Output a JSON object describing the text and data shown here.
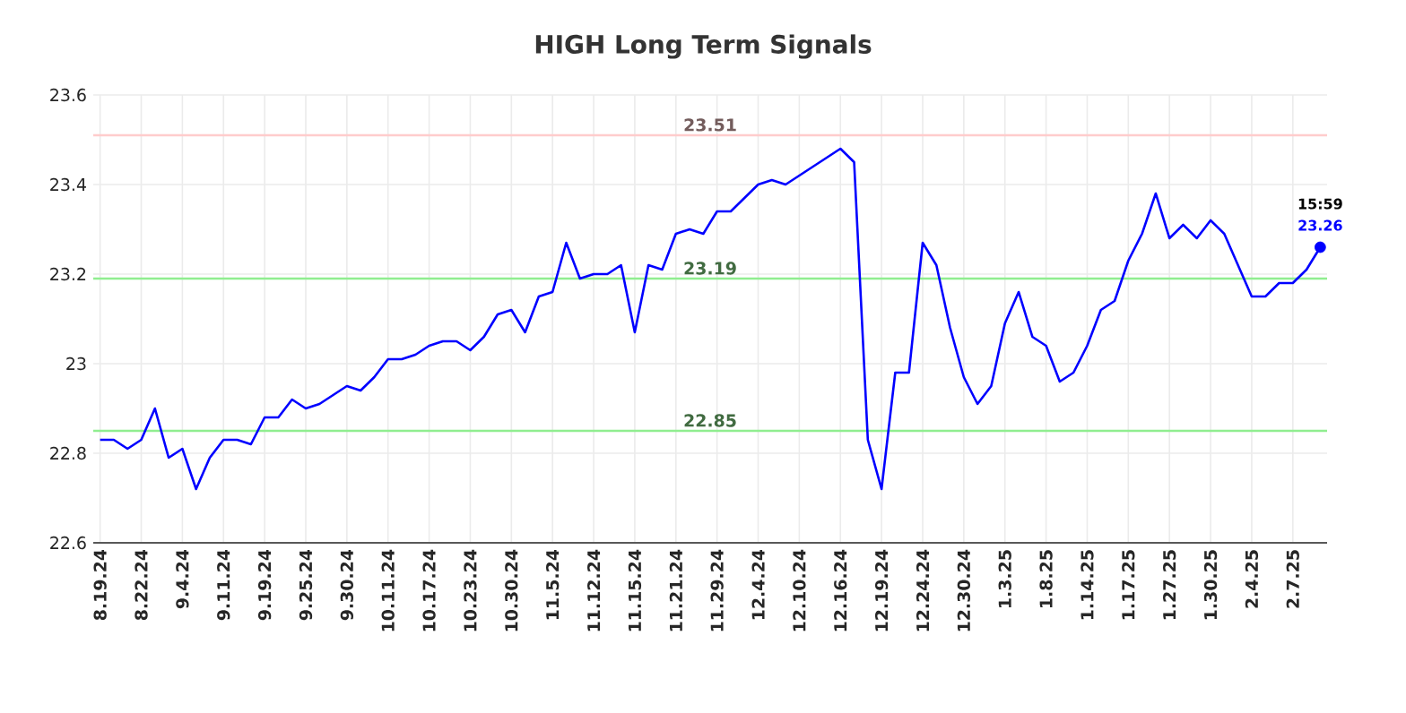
{
  "chart_data": {
    "type": "line",
    "title": "HIGH Long Term Signals",
    "categories": [
      "8.19.24",
      null,
      null,
      "8.22.24",
      null,
      null,
      "9.4.24",
      null,
      null,
      "9.11.24",
      null,
      null,
      "9.19.24",
      null,
      null,
      "9.25.24",
      null,
      null,
      "9.30.24",
      null,
      null,
      "10.11.24",
      null,
      null,
      "10.17.24",
      null,
      null,
      "10.23.24",
      null,
      null,
      "10.30.24",
      null,
      null,
      "11.5.24",
      null,
      null,
      "11.12.24",
      null,
      null,
      "11.15.24",
      null,
      null,
      "11.21.24",
      null,
      null,
      "11.29.24",
      null,
      null,
      "12.4.24",
      null,
      null,
      "12.10.24",
      null,
      null,
      "12.16.24",
      null,
      null,
      "12.19.24",
      null,
      null,
      "12.24.24",
      null,
      null,
      "12.30.24",
      null,
      null,
      "1.3.25",
      null,
      null,
      "1.8.25",
      null,
      null,
      "1.14.25",
      null,
      null,
      "1.17.25",
      null,
      null,
      "1.27.25",
      null,
      null,
      "1.30.25",
      null,
      null,
      "2.4.25",
      null,
      null,
      "2.7.25",
      null,
      null
    ],
    "series": [
      {
        "color": "#0000ff",
        "marker": "none",
        "values": [
          22.83,
          22.83,
          22.81,
          22.83,
          22.9,
          22.79,
          22.81,
          22.72,
          22.79,
          22.83,
          22.83,
          22.82,
          22.88,
          22.88,
          22.92,
          22.9,
          22.91,
          22.93,
          22.95,
          22.94,
          22.97,
          23.01,
          23.01,
          23.02,
          23.04,
          23.05,
          23.05,
          23.03,
          23.06,
          23.11,
          23.12,
          23.07,
          23.15,
          23.16,
          23.27,
          23.19,
          23.2,
          23.2,
          23.22,
          23.07,
          23.22,
          23.21,
          23.29,
          23.3,
          23.29,
          23.34,
          23.34,
          23.37,
          23.4,
          23.41,
          23.4,
          23.42,
          23.44,
          23.46,
          23.48,
          23.45,
          22.83,
          22.72,
          22.98,
          22.98,
          23.27,
          23.22,
          23.08,
          22.97,
          22.91,
          22.95,
          23.09,
          23.16,
          23.06,
          23.04,
          22.96,
          22.98,
          23.04,
          23.12,
          23.14,
          23.23,
          23.29,
          23.38,
          23.28,
          23.31,
          23.28,
          23.32,
          23.29,
          23.22,
          23.15,
          23.15,
          23.18,
          23.18,
          23.21,
          23.26
        ]
      },
      {
        "type": "scatter",
        "color": "#0000ff",
        "marker": "circle",
        "values": [
          null,
          null,
          null,
          null,
          null,
          null,
          null,
          null,
          null,
          null,
          null,
          null,
          null,
          null,
          null,
          null,
          null,
          null,
          null,
          null,
          null,
          null,
          null,
          null,
          null,
          null,
          null,
          null,
          null,
          null,
          null,
          null,
          null,
          null,
          null,
          null,
          null,
          null,
          null,
          null,
          null,
          null,
          null,
          null,
          null,
          null,
          null,
          null,
          null,
          null,
          null,
          null,
          null,
          null,
          null,
          null,
          null,
          null,
          null,
          null,
          null,
          null,
          null,
          null,
          null,
          null,
          null,
          null,
          null,
          null,
          null,
          null,
          null,
          null,
          null,
          null,
          null,
          null,
          null,
          null,
          null,
          null,
          null,
          null,
          null,
          null,
          null,
          null,
          null,
          23.26
        ]
      }
    ],
    "ylim": [
      22.6,
      23.6
    ],
    "yticks": [
      22.6,
      22.8,
      23,
      23.2,
      23.4,
      23.6
    ],
    "grid": true,
    "ref_lines": [
      {
        "axis": "y",
        "value": 23.51,
        "label": "23.51",
        "color": "#ffcccc"
      },
      {
        "axis": "y",
        "value": 23.19,
        "label": "23.19",
        "color": "#90ee90"
      },
      {
        "axis": "y",
        "value": 22.85,
        "label": "22.85",
        "color": "#90ee90"
      }
    ],
    "annotations": [
      {
        "text": "15:59",
        "y": 23.26
      },
      {
        "text": "23.26",
        "y": 23.26
      }
    ]
  }
}
